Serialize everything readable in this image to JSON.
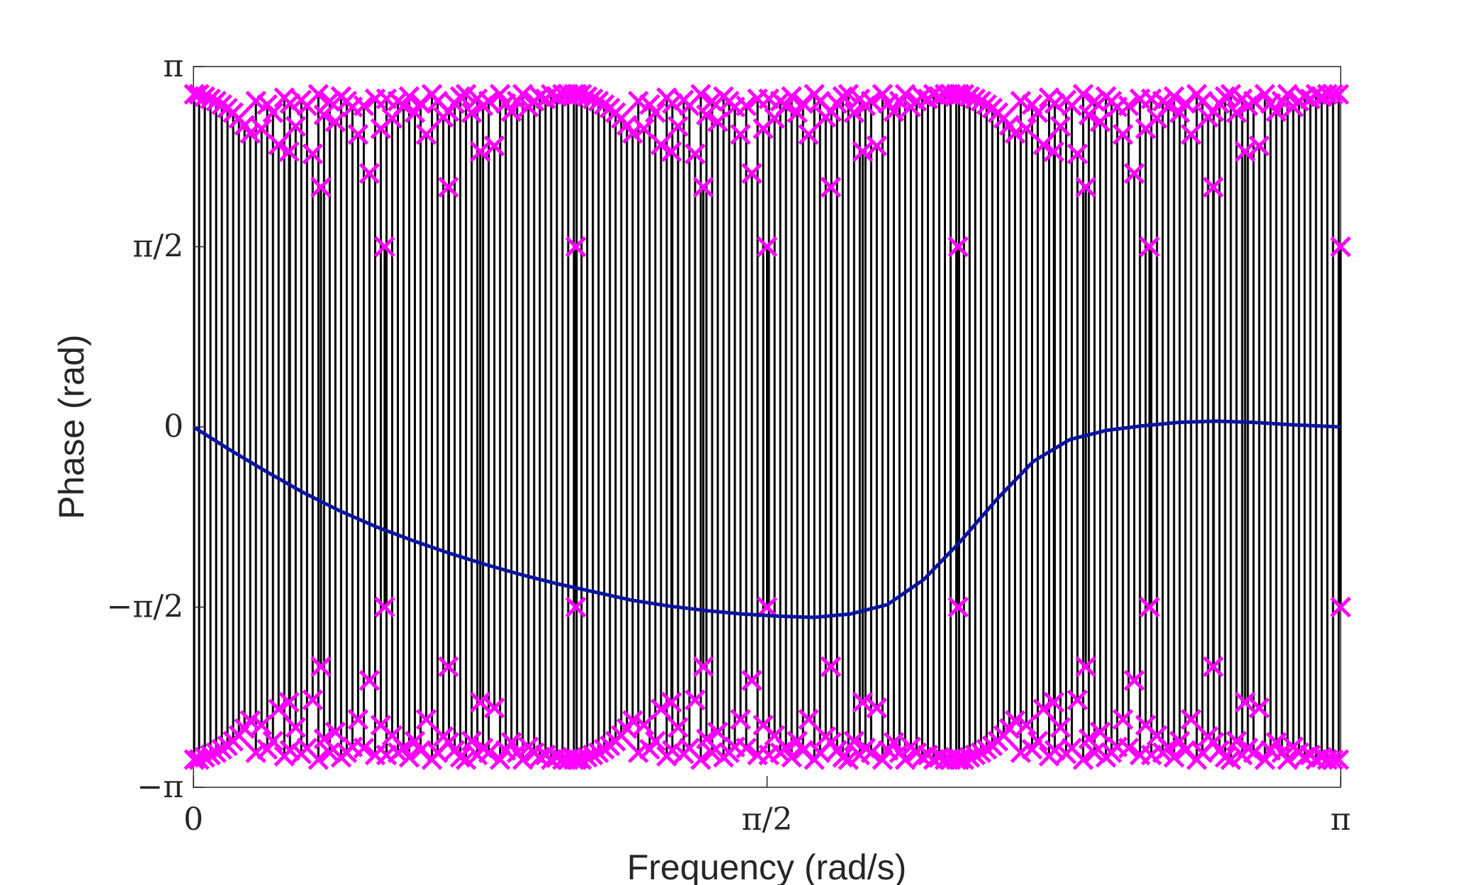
{
  "chart_data": {
    "type": "line",
    "xlabel": "Frequency (rad/s)",
    "ylabel": "Phase (rad)",
    "xlim": [
      0,
      3.14159
    ],
    "ylim": [
      -3.14159,
      3.14159
    ],
    "x_ticks": [
      {
        "value": 0,
        "label": "0"
      },
      {
        "value": 1.5708,
        "label": "π/2"
      },
      {
        "value": 3.14159,
        "label": "π"
      }
    ],
    "y_ticks": [
      {
        "value": -3.14159,
        "label": "−π"
      },
      {
        "value": -1.5708,
        "label": "−π/2"
      },
      {
        "value": 0,
        "label": "0"
      },
      {
        "value": 1.5708,
        "label": "π/2"
      },
      {
        "value": 3.14159,
        "label": "π"
      }
    ],
    "grid": false,
    "colors": {
      "line": "#0a14a0",
      "marker": "#ff00ff",
      "stem": "#000000",
      "axis": "#262626"
    },
    "series": [
      {
        "kind": "line",
        "x": [
          0,
          0.1,
          0.2,
          0.3,
          0.4,
          0.5,
          0.6,
          0.7,
          0.8,
          0.9,
          1.0,
          1.1,
          1.2,
          1.3,
          1.4,
          1.5,
          1.6,
          1.7,
          1.8,
          1.9,
          2.0,
          2.1,
          2.2,
          2.3,
          2.4,
          2.5,
          2.6,
          2.7,
          2.8,
          2.9,
          3.0,
          3.14159
        ],
        "y": [
          0,
          -0.2,
          -0.39,
          -0.57,
          -0.73,
          -0.87,
          -0.99,
          -1.1,
          -1.2,
          -1.29,
          -1.37,
          -1.44,
          -1.51,
          -1.56,
          -1.6,
          -1.63,
          -1.65,
          -1.66,
          -1.63,
          -1.55,
          -1.33,
          -1.0,
          -0.63,
          -0.3,
          -0.11,
          -0.03,
          0.01,
          0.04,
          0.05,
          0.04,
          0.02,
          0
        ]
      },
      {
        "kind": "stem",
        "period": 1.0472,
        "top_x": [
          0.0022,
          0.0155,
          0.0311,
          0.0466,
          0.0622,
          0.0777,
          0.0933,
          0.1088,
          0.1244,
          0.1399,
          0.1555,
          0.171,
          0.1866,
          0.2021,
          0.2177,
          0.2332,
          0.2488,
          0.2643,
          0.2799,
          0.2954,
          0.311,
          0.3265,
          0.3421,
          0.3576,
          0.3732,
          0.3887,
          0.4043,
          0.4198,
          0.4354,
          0.4509,
          0.4665,
          0.482,
          0.4976,
          0.5131,
          0.5287,
          0.5442,
          0.5598,
          0.5753,
          0.5909,
          0.6064,
          0.622,
          0.6375,
          0.6531,
          0.6686,
          0.6842,
          0.6997,
          0.7153,
          0.7308,
          0.7464,
          0.7619,
          0.7775,
          0.793,
          0.8086,
          0.8241,
          0.8397,
          0.8552,
          0.8708,
          0.8863,
          0.9019,
          0.9174,
          0.933,
          0.9485,
          0.9641,
          0.9796,
          0.9952,
          1.0107,
          1.0263,
          1.0418
        ],
        "top_y": [
          2.9,
          2.9,
          2.88,
          2.86,
          2.84,
          2.81,
          2.78,
          2.74,
          2.69,
          2.63,
          2.56,
          2.84,
          2.6,
          2.81,
          2.74,
          2.46,
          2.87,
          2.82,
          2.62,
          2.85,
          2.8,
          2.38,
          2.9,
          2.72,
          2.84,
          2.66,
          2.88,
          2.84,
          2.79,
          2.55,
          2.8,
          2.21,
          2.86,
          2.6,
          2.86,
          2.69,
          2.84,
          2.8,
          2.88,
          2.74,
          2.82,
          2.55,
          2.9,
          2.84,
          2.7,
          2.75,
          2.82,
          2.88,
          2.9,
          2.74,
          2.86,
          2.8,
          2.84,
          2.45,
          2.9,
          2.82,
          2.75,
          2.84,
          2.9,
          2.79,
          2.84,
          2.88,
          2.86,
          2.9,
          2.88,
          2.9,
          2.9,
          2.9
        ],
        "center_x": [
          0.5236,
          0.3491,
          0.6981,
          0.2618,
          0.7854
        ],
        "center_y": [
          1.5708,
          2.09,
          2.09,
          2.4,
          2.4
        ]
      }
    ]
  }
}
